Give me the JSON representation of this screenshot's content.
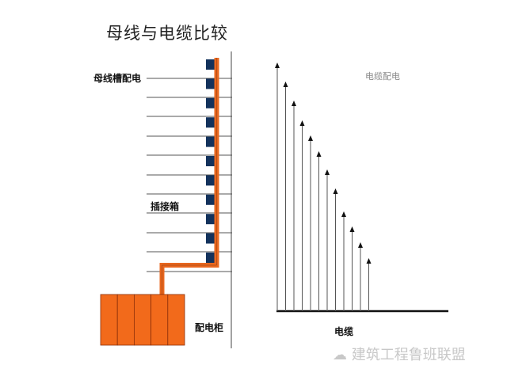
{
  "title": "母线与电缆比较",
  "labels": {
    "busway": "母线槽配电",
    "plug_box": "插接箱",
    "switchgear": "配电柜",
    "cable_dist": "电缆配电",
    "cable": "电缆"
  },
  "watermark": "建筑工程鲁班联盟",
  "colors": {
    "busbar": "#e8671f",
    "plug": "#13325c",
    "cabinet": "#f26a1b"
  },
  "floors": 11,
  "cable_count": 12
}
